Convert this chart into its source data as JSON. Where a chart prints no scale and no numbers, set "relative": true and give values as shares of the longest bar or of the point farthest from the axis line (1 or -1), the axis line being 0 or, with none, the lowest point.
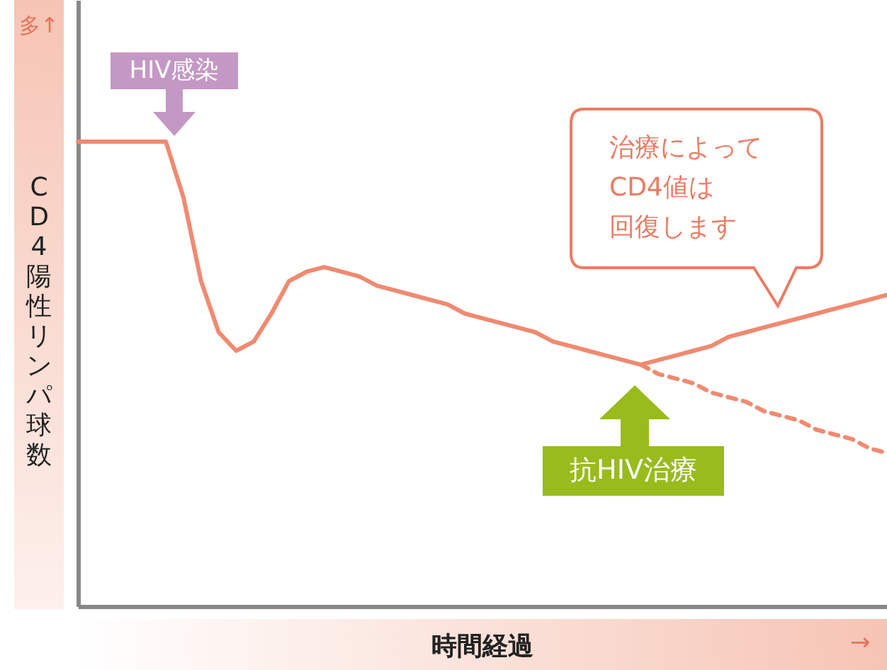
{
  "chart_data": {
    "type": "line",
    "relative": true,
    "marker": "none",
    "ylabel": "CD4陽性リンパ球数",
    "xlabel": "時間経過",
    "categories": [
      null,
      null,
      null,
      null,
      null,
      null,
      null,
      null,
      null,
      null,
      null,
      null,
      null,
      null,
      null,
      null,
      null,
      null,
      null,
      null,
      null,
      null,
      null,
      null,
      null,
      null,
      null,
      null,
      null,
      null,
      null,
      null,
      null,
      null,
      null,
      null,
      null,
      null,
      null,
      null,
      null,
      null,
      null,
      null,
      null,
      null,
      null
    ],
    "series": [
      {
        "color": "#f08a70",
        "line_style": "solid",
        "values": [
          1.0,
          1.0,
          1.0,
          1.0,
          1.0,
          1.0,
          0.88,
          0.7,
          0.59,
          0.55,
          0.57,
          0.63,
          0.7,
          0.72,
          0.73,
          0.72,
          0.71,
          0.69,
          0.68,
          0.67,
          0.66,
          0.65,
          0.63,
          0.62,
          0.61,
          0.6,
          0.59,
          0.57,
          0.56,
          0.55,
          0.54,
          0.53,
          0.52,
          0.53,
          0.54,
          0.55,
          0.56,
          0.58,
          0.59,
          0.6,
          0.61,
          0.62,
          0.63,
          0.64,
          0.65,
          0.66,
          0.67
        ]
      },
      {
        "color": "#f08a70",
        "line_style": "dashed",
        "values": [
          null,
          null,
          null,
          null,
          null,
          null,
          null,
          null,
          null,
          null,
          null,
          null,
          null,
          null,
          null,
          null,
          null,
          null,
          null,
          null,
          null,
          null,
          null,
          null,
          null,
          null,
          null,
          null,
          null,
          null,
          null,
          null,
          0.52,
          0.5,
          0.49,
          0.48,
          0.46,
          0.45,
          0.44,
          0.42,
          0.41,
          0.4,
          0.38,
          0.37,
          0.36,
          0.34,
          0.33
        ]
      }
    ],
    "annotations": [
      "多↑",
      "HIV感染",
      "治療によって",
      "CD4値は",
      "回復します",
      "抗HIV治療",
      "→"
    ]
  }
}
